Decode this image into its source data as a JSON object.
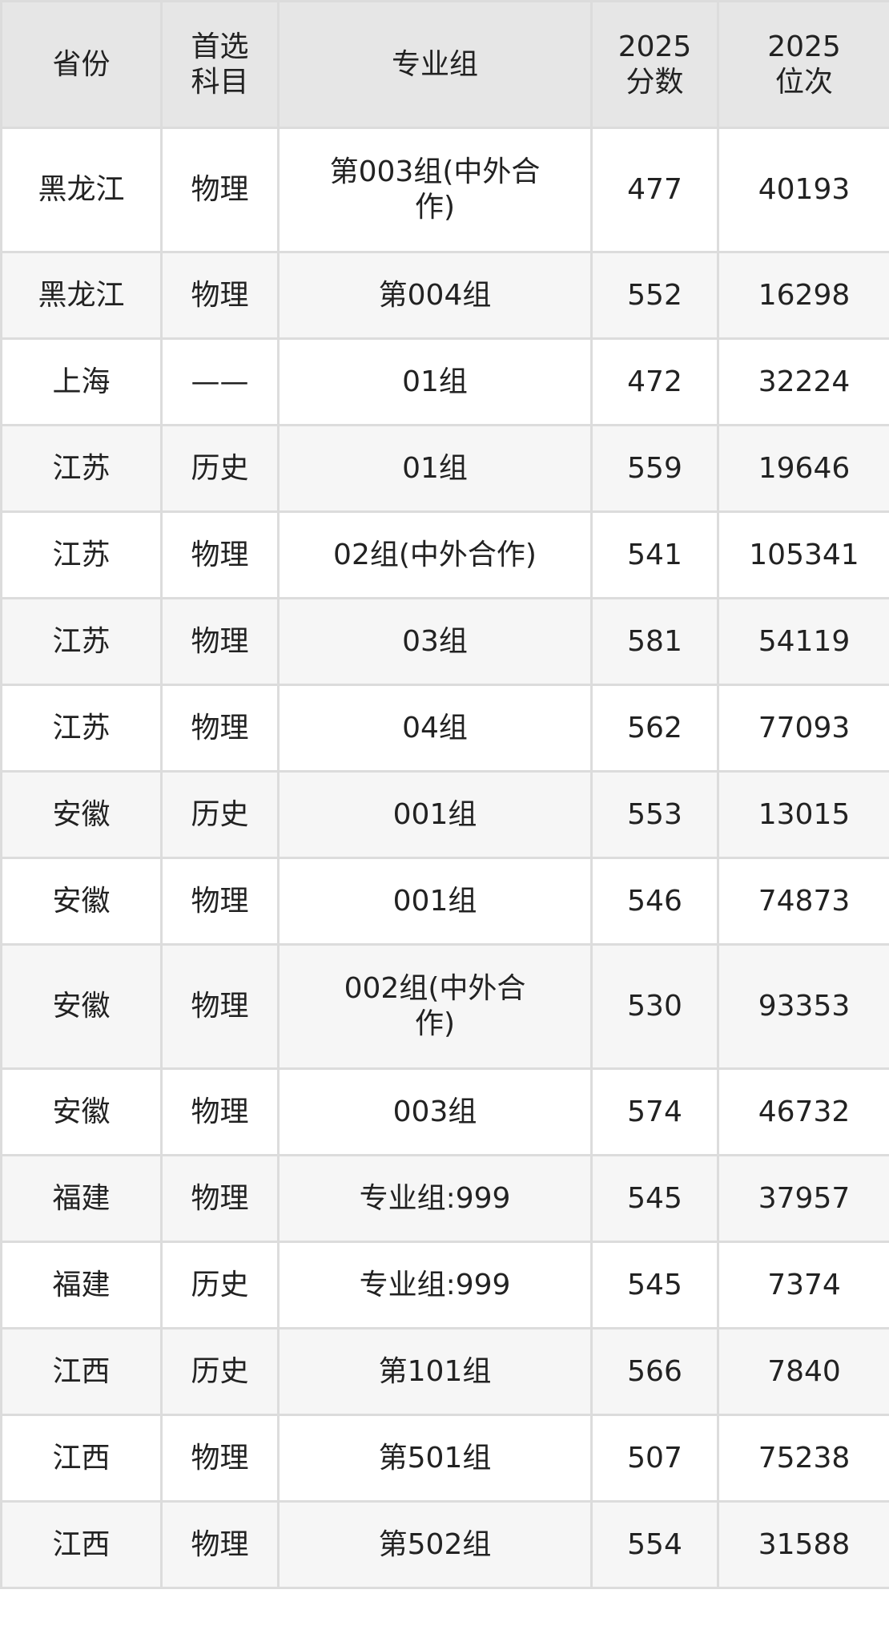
{
  "table": {
    "headers": [
      "省份",
      "首选\n科目",
      "专业组",
      "2025\n分数",
      "2025\n位次"
    ],
    "rows": [
      [
        "黑龙江",
        "物理",
        "第003组(中外合作)",
        "477",
        "40193"
      ],
      [
        "黑龙江",
        "物理",
        "第004组",
        "552",
        "16298"
      ],
      [
        "上海",
        "——",
        "01组",
        "472",
        "32224"
      ],
      [
        "江苏",
        "历史",
        "01组",
        "559",
        "19646"
      ],
      [
        "江苏",
        "物理",
        "02组(中外合作)",
        "541",
        "105341"
      ],
      [
        "江苏",
        "物理",
        "03组",
        "581",
        "54119"
      ],
      [
        "江苏",
        "物理",
        "04组",
        "562",
        "77093"
      ],
      [
        "安徽",
        "历史",
        "001组",
        "553",
        "13015"
      ],
      [
        "安徽",
        "物理",
        "001组",
        "546",
        "74873"
      ],
      [
        "安徽",
        "物理",
        "002组(中外合作)",
        "530",
        "93353"
      ],
      [
        "安徽",
        "物理",
        "003组",
        "574",
        "46732"
      ],
      [
        "福建",
        "物理",
        "专业组:999",
        "545",
        "37957"
      ],
      [
        "福建",
        "历史",
        "专业组:999",
        "545",
        "7374"
      ],
      [
        "江西",
        "历史",
        "第101组",
        "566",
        "7840"
      ],
      [
        "江西",
        "物理",
        "第501组",
        "507",
        "75238"
      ],
      [
        "江西",
        "物理",
        "第502组",
        "554",
        "31588"
      ]
    ]
  }
}
